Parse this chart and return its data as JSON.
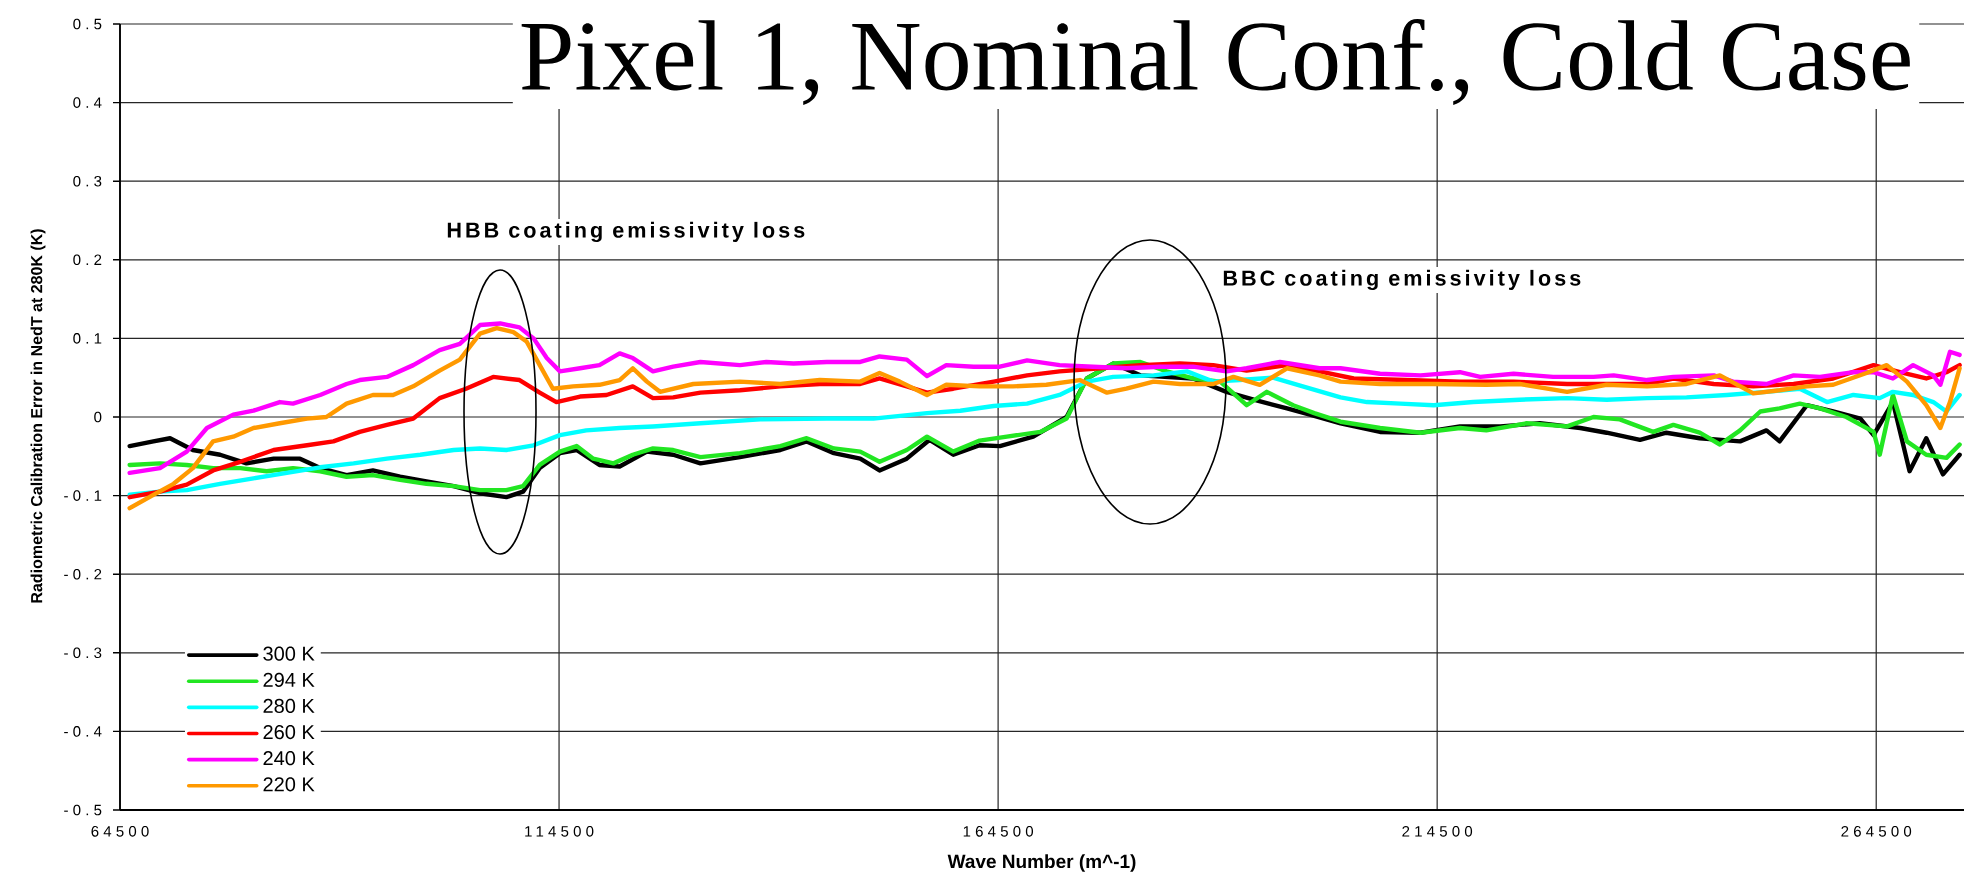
{
  "chart_data": {
    "type": "line",
    "title": "Pixel 1, Nominal Conf., Cold Case",
    "xlabel": "Wave Number (m^-1)",
    "ylabel": "Radiometric Calibration Error in NedT at 280K (K)",
    "xlim": [
      64500,
      274500
    ],
    "ylim": [
      -0.5,
      0.5
    ],
    "xticks": [
      64500,
      114500,
      164500,
      214500,
      264500
    ],
    "yticks": [
      -0.5,
      -0.4,
      -0.3,
      -0.2,
      -0.1,
      0,
      0.1,
      0.2,
      0.3,
      0.4,
      0.5
    ],
    "grid": true,
    "legend": "bottom left",
    "line_style": "solid",
    "annotations": [
      "HBB coating emissivity loss",
      "BBC coating emissivity loss"
    ],
    "series": [
      {
        "name": "300 K",
        "color": "#000000",
        "x": [
          65600,
          68300,
          70200,
          72800,
          75900,
          78900,
          82000,
          85000,
          87300,
          90300,
          93300,
          96400,
          99400,
          102500,
          105500,
          108500,
          110400,
          112300,
          114600,
          116500,
          119100,
          121400,
          124500,
          127500,
          130600,
          135100,
          139700,
          142700,
          145800,
          148800,
          151000,
          154100,
          156700,
          159400,
          162400,
          164700,
          168500,
          172300,
          174600,
          177600,
          180700,
          183700,
          186700,
          190500,
          193600,
          197400,
          200000,
          203500,
          208000,
          212600,
          217100,
          221700,
          226200,
          230800,
          233800,
          237600,
          240600,
          244400,
          249000,
          252000,
          253500,
          256600,
          259600,
          262700,
          264200,
          266400,
          268300,
          270200,
          272100,
          274000
        ],
        "values": [
          -0.037,
          -0.031,
          -0.027,
          -0.042,
          -0.048,
          -0.059,
          -0.053,
          -0.053,
          -0.065,
          -0.074,
          -0.068,
          -0.076,
          -0.082,
          -0.088,
          -0.097,
          -0.102,
          -0.095,
          -0.065,
          -0.046,
          -0.042,
          -0.061,
          -0.063,
          -0.044,
          -0.048,
          -0.059,
          -0.051,
          -0.042,
          -0.031,
          -0.046,
          -0.053,
          -0.068,
          -0.053,
          -0.029,
          -0.048,
          -0.036,
          -0.037,
          -0.025,
          0.0,
          0.049,
          0.068,
          0.053,
          0.051,
          0.049,
          0.032,
          0.022,
          0.011,
          0.003,
          -0.008,
          -0.019,
          -0.02,
          -0.012,
          -0.012,
          -0.008,
          -0.014,
          -0.02,
          -0.029,
          -0.02,
          -0.027,
          -0.031,
          -0.017,
          -0.031,
          0.015,
          0.007,
          -0.002,
          -0.023,
          0.019,
          -0.069,
          -0.027,
          -0.073,
          -0.048
        ]
      },
      {
        "name": "294 K",
        "color": "#22e622",
        "x": [
          65600,
          69050,
          72100,
          75100,
          78200,
          81200,
          84200,
          87300,
          90300,
          93300,
          96400,
          99400,
          102500,
          105500,
          108500,
          110400,
          112300,
          114600,
          116500,
          118400,
          120700,
          122900,
          125200,
          127500,
          130600,
          135100,
          139700,
          142700,
          145800,
          148800,
          151000,
          154100,
          156400,
          159400,
          162400,
          165500,
          169300,
          172300,
          174600,
          177600,
          180700,
          183700,
          186700,
          189800,
          192800,
          195100,
          198100,
          200500,
          203500,
          208000,
          212600,
          217100,
          220100,
          224700,
          229300,
          232300,
          235300,
          239100,
          241400,
          244400,
          246700,
          249000,
          251300,
          253500,
          255800,
          258100,
          261100,
          264200,
          264900,
          266400,
          268000,
          270200,
          272500,
          274000
        ],
        "values": [
          -0.061,
          -0.059,
          -0.061,
          -0.065,
          -0.065,
          -0.069,
          -0.065,
          -0.069,
          -0.076,
          -0.074,
          -0.08,
          -0.085,
          -0.088,
          -0.093,
          -0.093,
          -0.088,
          -0.061,
          -0.044,
          -0.037,
          -0.053,
          -0.059,
          -0.048,
          -0.04,
          -0.042,
          -0.051,
          -0.046,
          -0.037,
          -0.027,
          -0.04,
          -0.044,
          -0.057,
          -0.042,
          -0.025,
          -0.044,
          -0.03,
          -0.025,
          -0.019,
          -0.002,
          0.049,
          0.068,
          0.07,
          0.058,
          0.049,
          0.045,
          0.015,
          0.032,
          0.015,
          0.005,
          -0.006,
          -0.014,
          -0.02,
          -0.014,
          -0.017,
          -0.008,
          -0.012,
          0.0,
          -0.003,
          -0.019,
          -0.01,
          -0.02,
          -0.035,
          -0.017,
          0.007,
          0.011,
          0.017,
          0.011,
          0.0,
          -0.019,
          -0.048,
          0.028,
          -0.031,
          -0.048,
          -0.052,
          -0.035
        ]
      },
      {
        "name": "280 K",
        "color": "#00ffff",
        "x": [
          65600,
          69050,
          72100,
          75900,
          79700,
          83500,
          87300,
          91100,
          94900,
          98700,
          102500,
          105500,
          108500,
          111600,
          114600,
          117600,
          121400,
          125200,
          130600,
          137400,
          145000,
          150300,
          156400,
          160200,
          164000,
          167800,
          171500,
          174600,
          177600,
          182200,
          186000,
          189000,
          192000,
          195800,
          198900,
          203500,
          206500,
          210300,
          214100,
          218600,
          223900,
          229300,
          233800,
          238400,
          242900,
          247500,
          252000,
          255800,
          258900,
          261900,
          264900,
          266400,
          268700,
          271000,
          272500,
          274000
        ],
        "values": [
          -0.099,
          -0.095,
          -0.093,
          -0.085,
          -0.078,
          -0.071,
          -0.064,
          -0.059,
          -0.053,
          -0.048,
          -0.042,
          -0.04,
          -0.042,
          -0.036,
          -0.023,
          -0.017,
          -0.014,
          -0.012,
          -0.008,
          -0.003,
          -0.002,
          -0.002,
          0.005,
          0.008,
          0.014,
          0.017,
          0.028,
          0.045,
          0.051,
          0.053,
          0.058,
          0.045,
          0.047,
          0.05,
          0.04,
          0.025,
          0.019,
          0.017,
          0.015,
          0.019,
          0.022,
          0.024,
          0.022,
          0.024,
          0.025,
          0.028,
          0.032,
          0.036,
          0.019,
          0.028,
          0.024,
          0.032,
          0.028,
          0.019,
          0.007,
          0.028
        ]
      },
      {
        "name": "260 K",
        "color": "#ff0000",
        "x": [
          65600,
          69050,
          72100,
          75100,
          78200,
          82000,
          85800,
          88800,
          91800,
          94900,
          97900,
          100900,
          103900,
          107000,
          110000,
          112300,
          114200,
          116900,
          119900,
          122900,
          125200,
          127500,
          130600,
          135100,
          139700,
          144200,
          148800,
          151000,
          154100,
          156400,
          159400,
          164000,
          167800,
          171500,
          176100,
          180700,
          185200,
          189000,
          192800,
          197400,
          201100,
          205000,
          211000,
          217100,
          223200,
          229300,
          234600,
          238400,
          241400,
          246000,
          250500,
          255100,
          259600,
          264200,
          267200,
          270200,
          272500,
          274000
        ],
        "values": [
          -0.102,
          -0.095,
          -0.086,
          -0.068,
          -0.057,
          -0.042,
          -0.036,
          -0.031,
          -0.019,
          -0.01,
          -0.002,
          0.024,
          0.036,
          0.051,
          0.047,
          0.031,
          0.019,
          0.026,
          0.028,
          0.039,
          0.024,
          0.025,
          0.031,
          0.034,
          0.039,
          0.042,
          0.042,
          0.049,
          0.039,
          0.031,
          0.036,
          0.045,
          0.053,
          0.058,
          0.062,
          0.066,
          0.068,
          0.066,
          0.059,
          0.066,
          0.058,
          0.049,
          0.047,
          0.045,
          0.045,
          0.042,
          0.042,
          0.042,
          0.049,
          0.042,
          0.039,
          0.042,
          0.049,
          0.066,
          0.057,
          0.049,
          0.057,
          0.066
        ]
      },
      {
        "name": "240 K",
        "color": "#ff00ff",
        "x": [
          65600,
          69050,
          72100,
          74400,
          77400,
          79700,
          82700,
          84200,
          87300,
          90300,
          91800,
          94900,
          97900,
          100900,
          103200,
          105500,
          107800,
          110000,
          111600,
          113100,
          114600,
          116900,
          119100,
          121400,
          122900,
          125200,
          127500,
          130600,
          135100,
          138100,
          141200,
          145000,
          148800,
          151000,
          154100,
          156400,
          158600,
          161700,
          164700,
          167800,
          171500,
          175300,
          179100,
          182900,
          186700,
          190500,
          192800,
          196600,
          201100,
          203500,
          208000,
          212600,
          217100,
          219400,
          223200,
          227700,
          232300,
          234600,
          238400,
          241400,
          246000,
          248200,
          252000,
          255100,
          258100,
          261900,
          264200,
          266400,
          268700,
          271000,
          271800,
          272900,
          274000
        ],
        "values": [
          -0.071,
          -0.065,
          -0.044,
          -0.014,
          0.003,
          0.008,
          0.019,
          0.017,
          0.028,
          0.042,
          0.047,
          0.051,
          0.066,
          0.085,
          0.093,
          0.117,
          0.119,
          0.114,
          0.1,
          0.075,
          0.058,
          0.062,
          0.066,
          0.081,
          0.075,
          0.058,
          0.064,
          0.07,
          0.066,
          0.07,
          0.068,
          0.07,
          0.07,
          0.077,
          0.073,
          0.052,
          0.066,
          0.064,
          0.064,
          0.072,
          0.066,
          0.064,
          0.062,
          0.064,
          0.064,
          0.058,
          0.062,
          0.07,
          0.062,
          0.062,
          0.055,
          0.053,
          0.057,
          0.051,
          0.055,
          0.051,
          0.051,
          0.053,
          0.047,
          0.051,
          0.053,
          0.045,
          0.042,
          0.053,
          0.051,
          0.057,
          0.057,
          0.049,
          0.066,
          0.053,
          0.041,
          0.083,
          0.079
        ]
      },
      {
        "name": "220 K",
        "color": "#ff9900",
        "x": [
          65600,
          68300,
          70600,
          72800,
          75100,
          77400,
          79700,
          82700,
          85800,
          88000,
          90300,
          93300,
          95600,
          97900,
          100900,
          103200,
          105500,
          107400,
          109300,
          110800,
          112300,
          113800,
          116100,
          119100,
          121400,
          122900,
          124500,
          126000,
          129800,
          135100,
          139700,
          144200,
          148800,
          151000,
          153300,
          156400,
          158600,
          162400,
          166200,
          170000,
          173800,
          176900,
          179100,
          182200,
          185200,
          189000,
          191300,
          194300,
          197400,
          201100,
          203500,
          208000,
          214100,
          220100,
          223900,
          229300,
          233800,
          238400,
          242900,
          246700,
          250500,
          253500,
          256600,
          259600,
          263400,
          265700,
          268000,
          270200,
          271800,
          272900,
          274000
        ],
        "values": [
          -0.116,
          -0.099,
          -0.085,
          -0.065,
          -0.031,
          -0.025,
          -0.014,
          -0.008,
          -0.002,
          0.0,
          0.017,
          0.028,
          0.028,
          0.039,
          0.059,
          0.073,
          0.106,
          0.113,
          0.108,
          0.096,
          0.066,
          0.036,
          0.039,
          0.041,
          0.047,
          0.062,
          0.045,
          0.032,
          0.042,
          0.045,
          0.042,
          0.047,
          0.045,
          0.056,
          0.045,
          0.028,
          0.041,
          0.039,
          0.039,
          0.041,
          0.047,
          0.031,
          0.036,
          0.045,
          0.042,
          0.042,
          0.051,
          0.041,
          0.062,
          0.053,
          0.045,
          0.042,
          0.042,
          0.041,
          0.042,
          0.032,
          0.041,
          0.039,
          0.042,
          0.053,
          0.03,
          0.034,
          0.039,
          0.041,
          0.056,
          0.066,
          0.045,
          0.015,
          -0.014,
          0.019,
          0.062
        ]
      }
    ]
  }
}
